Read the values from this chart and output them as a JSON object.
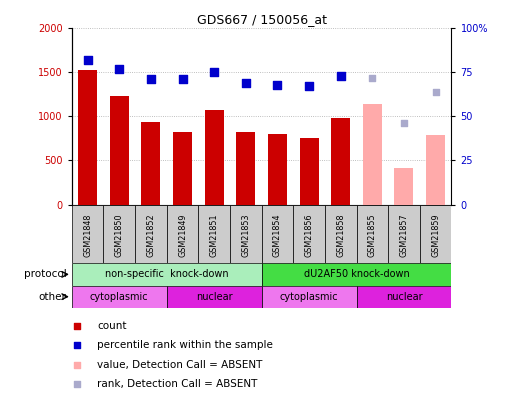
{
  "title": "GDS667 / 150056_at",
  "samples": [
    "GSM21848",
    "GSM21850",
    "GSM21852",
    "GSM21849",
    "GSM21851",
    "GSM21853",
    "GSM21854",
    "GSM21856",
    "GSM21858",
    "GSM21855",
    "GSM21857",
    "GSM21859"
  ],
  "count_values": [
    1530,
    1230,
    940,
    820,
    1070,
    820,
    800,
    760,
    980,
    null,
    null,
    null
  ],
  "count_absent": [
    null,
    null,
    null,
    null,
    null,
    null,
    null,
    null,
    null,
    1140,
    420,
    790
  ],
  "rank_values": [
    82,
    77,
    71,
    71,
    75,
    69,
    68,
    67,
    73,
    null,
    null,
    null
  ],
  "rank_absent": [
    null,
    null,
    null,
    null,
    null,
    null,
    null,
    null,
    null,
    72,
    46,
    64
  ],
  "ylim_left": [
    0,
    2000
  ],
  "ylim_right": [
    0,
    100
  ],
  "yticks_left": [
    0,
    500,
    1000,
    1500,
    2000
  ],
  "yticks_right": [
    0,
    25,
    50,
    75,
    100
  ],
  "ytick_labels_right": [
    "0",
    "25",
    "50",
    "75",
    "100%"
  ],
  "bar_color": "#cc0000",
  "bar_absent_color": "#ffaaaa",
  "dot_color": "#0000cc",
  "dot_absent_color": "#aaaacc",
  "protocol_groups": [
    {
      "label": "non-specific  knock-down",
      "start": 0,
      "end": 6,
      "color": "#aaeebb"
    },
    {
      "label": "dU2AF50 knock-down",
      "start": 6,
      "end": 12,
      "color": "#44dd44"
    }
  ],
  "other_groups": [
    {
      "label": "cytoplasmic",
      "start": 0,
      "end": 3,
      "color": "#ee77ee"
    },
    {
      "label": "nuclear",
      "start": 3,
      "end": 6,
      "color": "#dd22dd"
    },
    {
      "label": "cytoplasmic",
      "start": 6,
      "end": 9,
      "color": "#ee77ee"
    },
    {
      "label": "nuclear",
      "start": 9,
      "end": 12,
      "color": "#dd22dd"
    }
  ],
  "legend_items": [
    {
      "label": "count",
      "color": "#cc0000"
    },
    {
      "label": "percentile rank within the sample",
      "color": "#0000cc"
    },
    {
      "label": "value, Detection Call = ABSENT",
      "color": "#ffaaaa"
    },
    {
      "label": "rank, Detection Call = ABSENT",
      "color": "#aaaacc"
    }
  ],
  "protocol_label": "protocol",
  "other_label": "other",
  "grid_color": "#aaaaaa",
  "background_color": "#ffffff",
  "axis_bg_color": "#ffffff",
  "xtick_bg_color": "#cccccc"
}
